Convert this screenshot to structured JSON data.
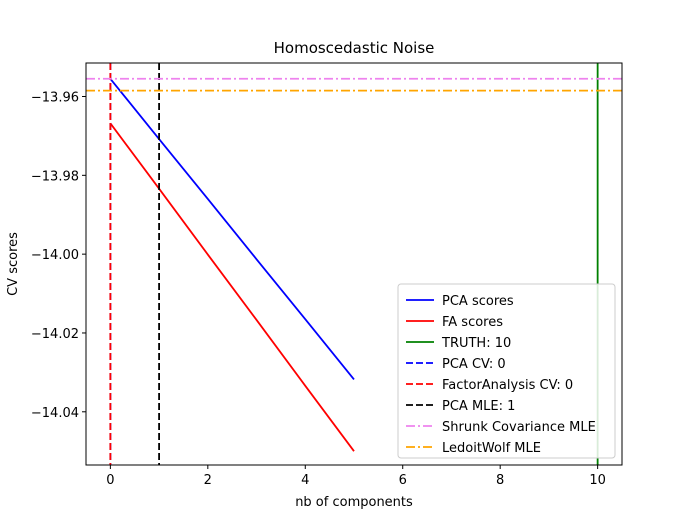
{
  "chart_data": {
    "type": "line",
    "title": "Homoscedastic Noise",
    "xlabel": "nb of components",
    "ylabel": "CV scores",
    "xlim": [
      -0.5,
      10.5
    ],
    "ylim": [
      -14.0535,
      -13.9515
    ],
    "x_ticks": [
      0,
      2,
      4,
      6,
      8,
      10
    ],
    "x_tick_labels": [
      "0",
      "2",
      "4",
      "6",
      "8",
      "10"
    ],
    "y_ticks": [
      -13.96,
      -13.98,
      -14.0,
      -14.02,
      -14.04
    ],
    "y_tick_labels": [
      "−13.96",
      "−13.98",
      "−14.00",
      "−14.02",
      "−14.04"
    ],
    "legend_position": "lower-right",
    "grid": false,
    "series": [
      {
        "name": "PCA scores",
        "kind": "line",
        "color": "#0000ff",
        "dash": "solid",
        "x": [
          0,
          1,
          2,
          3,
          4,
          5
        ],
        "y": [
          -13.9555,
          -13.9708,
          -13.986,
          -14.0013,
          -14.0165,
          -14.0318
        ]
      },
      {
        "name": "FA scores",
        "kind": "line",
        "color": "#ff0000",
        "dash": "solid",
        "x": [
          0,
          1,
          2,
          3,
          4,
          5
        ],
        "y": [
          -13.9668,
          -13.9834,
          -14.0001,
          -14.0167,
          -14.0334,
          -14.05
        ]
      },
      {
        "name": "TRUTH: 10",
        "kind": "vline",
        "color": "#008000",
        "dash": "solid",
        "x": 10
      },
      {
        "name": "PCA CV: 0",
        "kind": "vline",
        "color": "#0000ff",
        "dash": "dashed",
        "x": 0
      },
      {
        "name": "FactorAnalysis CV: 0",
        "kind": "vline",
        "color": "#ff0000",
        "dash": "dashed",
        "x": 0
      },
      {
        "name": "PCA MLE: 1",
        "kind": "vline",
        "color": "#000000",
        "dash": "dashed",
        "x": 1
      },
      {
        "name": "Shrunk Covariance MLE",
        "kind": "hline",
        "color": "#ee82ee",
        "dash": "dashdot",
        "y": -13.9555
      },
      {
        "name": "LedoitWolf MLE",
        "kind": "hline",
        "color": "#ffa500",
        "dash": "dashdot",
        "y": -13.9585
      }
    ]
  }
}
